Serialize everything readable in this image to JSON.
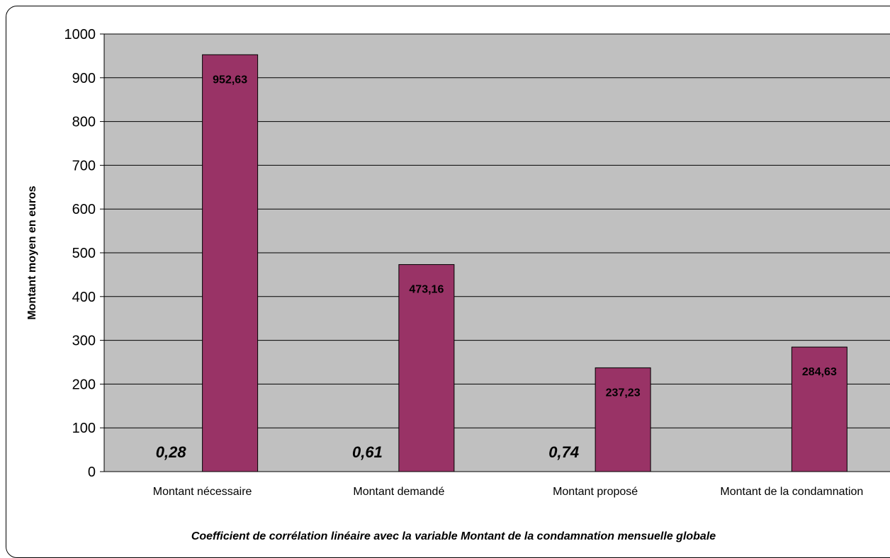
{
  "chart_data": {
    "type": "bar",
    "categories": [
      "Montant nécessaire",
      "Montant demandé",
      "Montant proposé",
      "Montant de la condamnation"
    ],
    "values": [
      952.63,
      473.16,
      237.23,
      284.63
    ],
    "value_labels": [
      "952,63",
      "473,16",
      "237,23",
      "284,63"
    ],
    "coefficients": [
      "0,28",
      "0,61",
      "0,74"
    ],
    "ylabel": "Montant moyen en euros",
    "xlabel": "Coefficient de corrélation linéaire avec la variable Montant de la condamnation mensuelle globale",
    "ylim": [
      0,
      1000
    ],
    "yticks": [
      0,
      100,
      200,
      300,
      400,
      500,
      600,
      700,
      800,
      900,
      1000
    ],
    "grid": true,
    "colors": {
      "bar": "#993366",
      "plot_bg": "#c0c0c0"
    }
  }
}
